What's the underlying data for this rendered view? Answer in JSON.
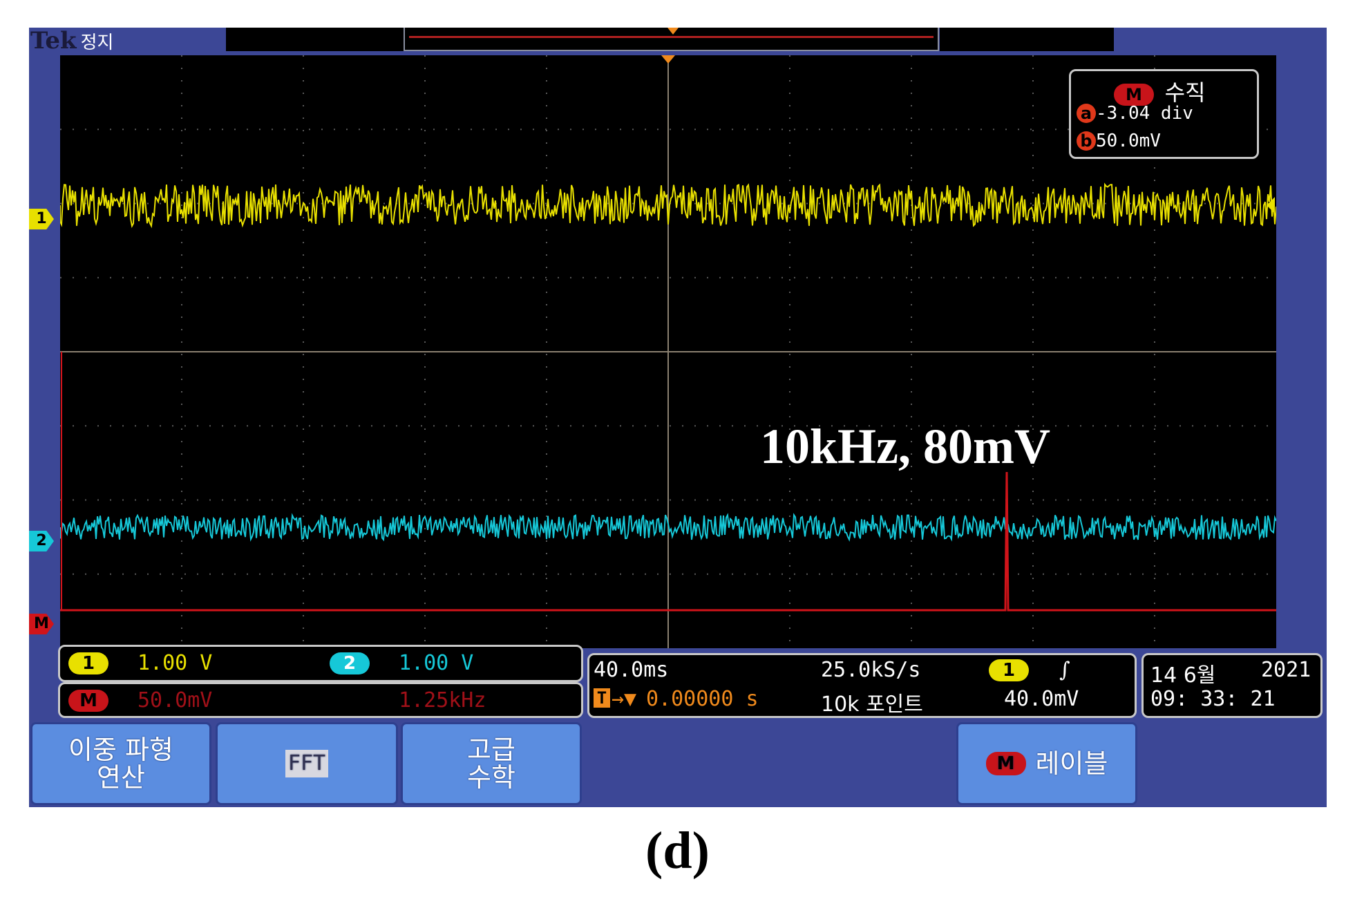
{
  "header": {
    "brand": "Tek",
    "state": "정지"
  },
  "measurement": {
    "label": "수직",
    "channel": "M",
    "a_label": "a",
    "a_value": "-3.04 div",
    "b_label": "b",
    "b_value": "50.0mV"
  },
  "annotation": "10kHz, 80mV",
  "channels": {
    "ch1": {
      "label": "1",
      "scale": "1.00 V",
      "color": "#e8e000"
    },
    "ch2": {
      "label": "2",
      "scale": "1.00 V",
      "color": "#16c8d8"
    },
    "math": {
      "label": "M",
      "scale": "50.0mV",
      "freq": "1.25kHz",
      "color": "#d0141a"
    }
  },
  "timebase": {
    "time_div": "40.0ms",
    "sample_rate": "25.0kS/s",
    "trigger_channel": "1",
    "trigger_slope": "∫",
    "trigger_marker": "T",
    "position": "0.00000 s",
    "record_length": "10k 포인트",
    "trigger_level": "40.0mV"
  },
  "datetime": {
    "date": "14 6월",
    "year": "2021",
    "time": "09: 33: 21"
  },
  "softkeys": {
    "dual_math": "이중 파형\n연산",
    "fft": "FFT",
    "advanced_math": "고급\n수학",
    "label_prefix": "M",
    "label": "레이블"
  },
  "caption": "(d)"
}
